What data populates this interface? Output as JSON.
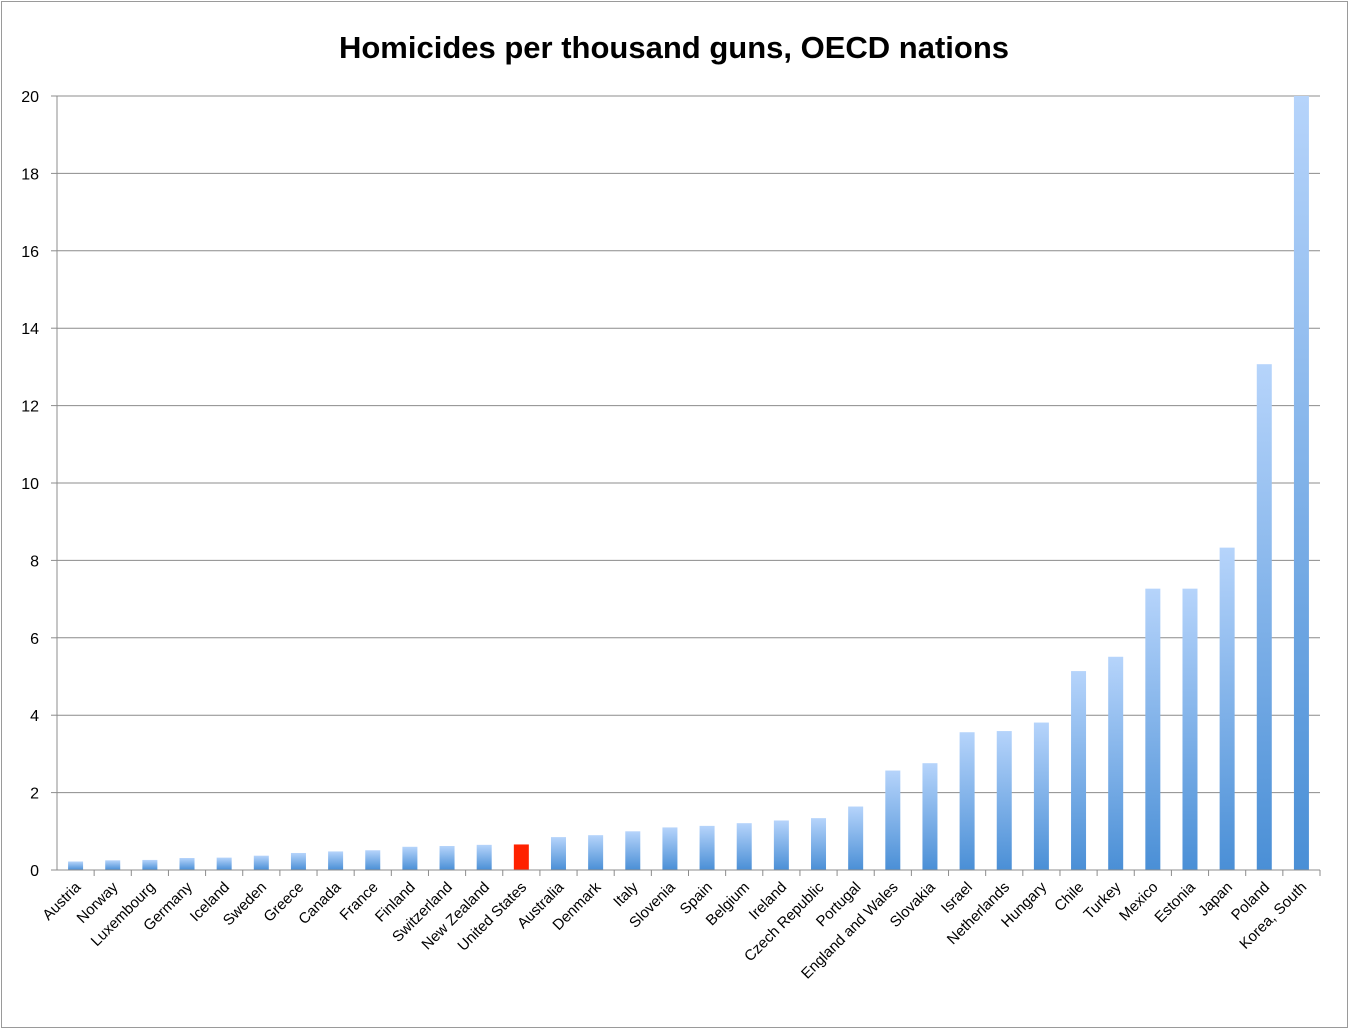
{
  "chart_data": {
    "type": "bar",
    "title": "Homicides per thousand guns, OECD nations",
    "xlabel": "",
    "ylabel": "",
    "ylim": [
      0,
      20
    ],
    "yticks": [
      0,
      2,
      4,
      6,
      8,
      10,
      12,
      14,
      16,
      18,
      20
    ],
    "grid": true,
    "legend": "none",
    "categories": [
      "Austria",
      "Norway",
      "Luxembourg",
      "Germany",
      "Iceland",
      "Sweden",
      "Greece",
      "Canada",
      "France",
      "Finland",
      "Switzerland",
      "New Zealand",
      "United States",
      "Australia",
      "Denmark",
      "Italy",
      "Slovenia",
      "Spain",
      "Belgium",
      "Ireland",
      "Czech Republic",
      "Portugal",
      "England and Wales",
      "Slovakia",
      "Israel",
      "Netherlands",
      "Hungary",
      "Chile",
      "Turkey",
      "Mexico",
      "Estonia",
      "Japan",
      "Poland",
      "Korea, South"
    ],
    "values": [
      0.22,
      0.25,
      0.26,
      0.31,
      0.32,
      0.37,
      0.44,
      0.48,
      0.51,
      0.6,
      0.62,
      0.65,
      0.66,
      0.85,
      0.9,
      1.0,
      1.1,
      1.14,
      1.21,
      1.28,
      1.34,
      1.64,
      2.57,
      2.76,
      3.56,
      3.59,
      3.81,
      5.14,
      5.51,
      7.27,
      7.27,
      8.33,
      13.07,
      20.0
    ],
    "highlight_category": "United States",
    "colors": {
      "bar": "#7aaee6",
      "bar_top": "#b6d4fb",
      "bar_bottom": "#4a8fd6",
      "highlight": "#ff2200",
      "grid": "#8c8c8c"
    }
  }
}
